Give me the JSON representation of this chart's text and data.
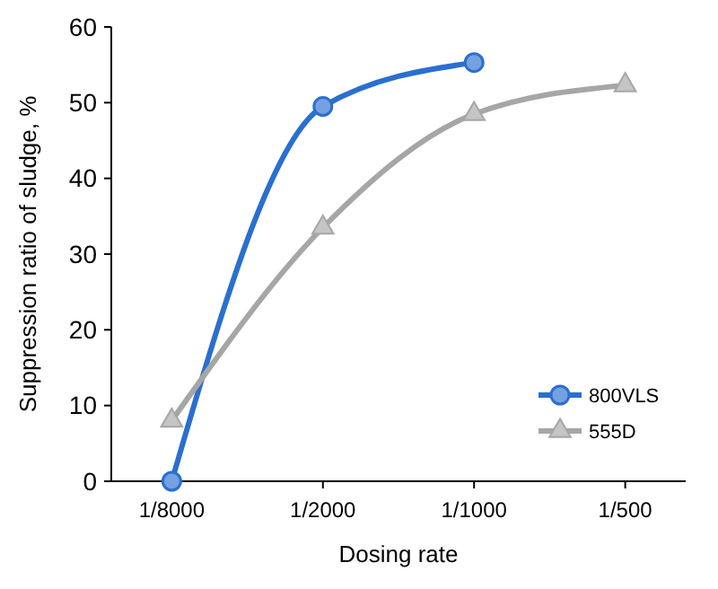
{
  "chart_data": {
    "type": "line",
    "xlabel": "Dosing rate",
    "ylabel": "Suppression ratio of sludge, %",
    "categories": [
      "1/8000",
      "1/2000",
      "1/1000",
      "1/500"
    ],
    "ylim": [
      0,
      60
    ],
    "yticks": [
      0,
      10,
      20,
      30,
      40,
      50,
      60
    ],
    "grid": false,
    "legend": "bottom right",
    "line_style": "solid",
    "series": [
      {
        "name": "800VLS",
        "color": "#2a6fd0",
        "marker": "circle",
        "values": [
          0,
          49.5,
          55.3,
          null
        ]
      },
      {
        "name": "555D",
        "color": "#a6a6a6",
        "marker": "triangle",
        "values": [
          8,
          33.5,
          48.5,
          52.3
        ]
      }
    ]
  }
}
